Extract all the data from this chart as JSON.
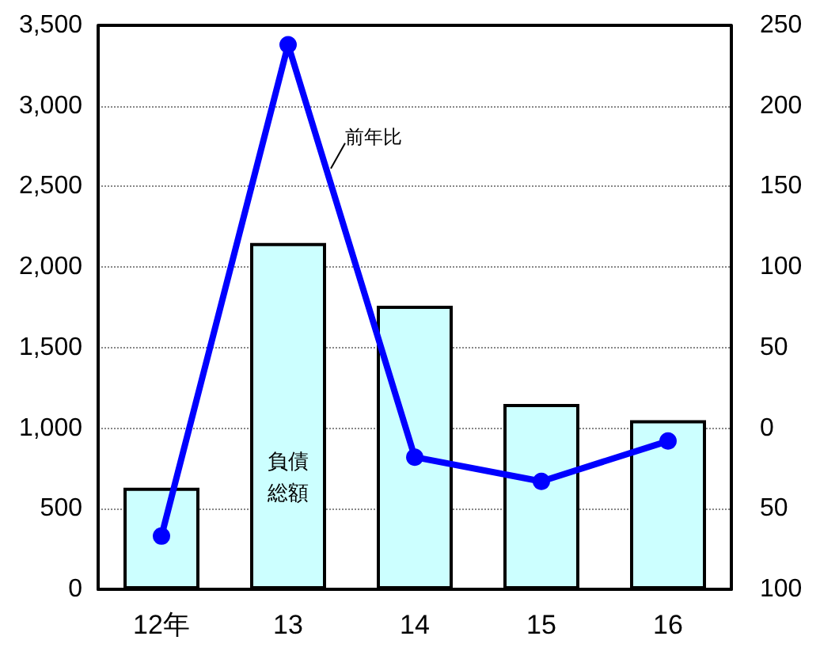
{
  "chart_data": {
    "type": "bar",
    "categories": [
      "12年",
      "13",
      "14",
      "15",
      "16"
    ],
    "series": [
      {
        "name": "負債総額",
        "color": "#ccffff",
        "values": [
          630,
          2150,
          1760,
          1150,
          1050
        ]
      },
      {
        "name": "前年比",
        "type": "line",
        "axis": "y2",
        "color": "#0000ff",
        "values": [
          -67,
          238,
          -18,
          -33,
          -8
        ]
      }
    ],
    "ylim": [
      0,
      3500
    ],
    "yticks": [
      0,
      500,
      {
        "value": 1000,
        "label": "1,000"
      },
      {
        "value": 1500,
        "label": "1,500"
      },
      {
        "value": 2000,
        "label": "2,000"
      },
      {
        "value": 2500,
        "label": "2,500"
      },
      {
        "value": 3000,
        "label": "3,000"
      },
      {
        "value": 3500,
        "label": "3,500"
      }
    ],
    "y2lim": [
      -100,
      250
    ],
    "y2ticks": [
      {
        "value": -100,
        "label": "100"
      },
      {
        "value": -50,
        "label": "50"
      },
      0,
      50,
      100,
      150,
      200,
      250
    ],
    "grid": "y",
    "legend": false,
    "marker": "circle",
    "line_style": "solid"
  }
}
